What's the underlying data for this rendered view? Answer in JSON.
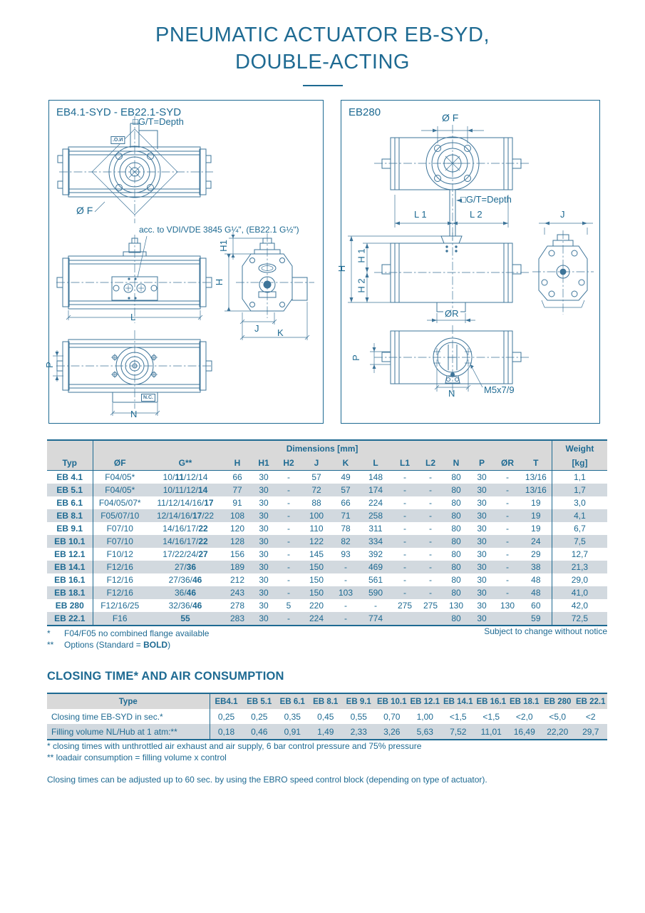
{
  "title": {
    "line1": "PNEUMATIC ACTUATOR EB-SYD,",
    "line2": "DOUBLE-ACTING"
  },
  "colors": {
    "accent": "#1e6a92",
    "header_bg": "#d9d9d9",
    "stripe_bg": "#d2d9df"
  },
  "drawings": {
    "left": {
      "box_label": "EB4.1-SYD - EB22.1-SYD",
      "labels": {
        "gt_depth": "□G/T=Depth",
        "no_tag": "N.O.",
        "of": "Ø F",
        "acc_note": "acc. to VDI/VDE 3845 G¼\", (EB22.1 G½\")",
        "dim_l": "L",
        "dim_h1": "H1",
        "dim_h": "H",
        "dim_j": "J",
        "dim_k": "K",
        "dim_p": "P",
        "dim_n": "N",
        "nc_tag": "N.C."
      }
    },
    "right": {
      "box_label": "EB280",
      "labels": {
        "of": "Ø F",
        "gt_depth": "□G/T=Depth",
        "dim_l1": "L 1",
        "dim_l2": "L 2",
        "dim_j": "J",
        "dim_h": "H",
        "dim_h1": "H 1",
        "dim_h2": "H 2",
        "dim_or": "ØR",
        "dim_p": "P",
        "dim_n": "N",
        "m5": "M5x7/9"
      }
    }
  },
  "dim_table": {
    "group_header": "Dimensions [mm]",
    "weight_header": "Weight",
    "weight_unit": "[kg]",
    "columns": [
      "Typ",
      "ØF",
      "G**",
      "H",
      "H1",
      "H2",
      "J",
      "K",
      "L",
      "L1",
      "L2",
      "N",
      "P",
      "ØR",
      "T"
    ],
    "rows": [
      {
        "typ": "EB 4.1",
        "cells": [
          "F04/05*",
          "10/**11**/12/14",
          "66",
          "30",
          "-",
          "57",
          "49",
          "148",
          "-",
          "-",
          "80",
          "30",
          "-",
          "13/16",
          "1,1"
        ]
      },
      {
        "typ": "EB 5.1",
        "cells": [
          "F04/05*",
          "10/11/12/**14**",
          "77",
          "30",
          "-",
          "72",
          "57",
          "174",
          "-",
          "-",
          "80",
          "30",
          "-",
          "13/16",
          "1,7"
        ]
      },
      {
        "typ": "EB 6.1",
        "cells": [
          "F04/05/07*",
          "11/12/14/16/**17**",
          "91",
          "30",
          "-",
          "88",
          "66",
          "224",
          "-",
          "-",
          "80",
          "30",
          "-",
          "19",
          "3,0"
        ]
      },
      {
        "typ": "EB 8.1",
        "cells": [
          "F05/07/10",
          "12/14/16/**17**/22",
          "108",
          "30",
          "-",
          "100",
          "71",
          "258",
          "-",
          "-",
          "80",
          "30",
          "-",
          "19",
          "4,1"
        ]
      },
      {
        "typ": "EB 9.1",
        "cells": [
          "F07/10",
          "14/16/17/**22**",
          "120",
          "30",
          "-",
          "110",
          "78",
          "311",
          "-",
          "-",
          "80",
          "30",
          "-",
          "19",
          "6,7"
        ]
      },
      {
        "typ": "EB 10.1",
        "cells": [
          "F07/10",
          "14/16/17/**22**",
          "128",
          "30",
          "-",
          "122",
          "82",
          "334",
          "-",
          "-",
          "80",
          "30",
          "-",
          "24",
          "7,5"
        ]
      },
      {
        "typ": "EB 12.1",
        "cells": [
          "F10/12",
          "17/22/24/**27**",
          "156",
          "30",
          "-",
          "145",
          "93",
          "392",
          "-",
          "-",
          "80",
          "30",
          "-",
          "29",
          "12,7"
        ]
      },
      {
        "typ": "EB 14.1",
        "cells": [
          "F12/16",
          "27/**36**",
          "189",
          "30",
          "-",
          "150",
          "-",
          "469",
          "-",
          "-",
          "80",
          "30",
          "-",
          "38",
          "21,3"
        ]
      },
      {
        "typ": "EB 16.1",
        "cells": [
          "F12/16",
          "27/36/**46**",
          "212",
          "30",
          "-",
          "150",
          "-",
          "561",
          "-",
          "-",
          "80",
          "30",
          "-",
          "48",
          "29,0"
        ]
      },
      {
        "typ": "EB 18.1",
        "cells": [
          "F12/16",
          "36/**46**",
          "243",
          "30",
          "-",
          "150",
          "103",
          "590",
          "-",
          "-",
          "80",
          "30",
          "-",
          "48",
          "41,0"
        ]
      },
      {
        "typ": "EB 280",
        "cells": [
          "F12/16/25",
          "32/36/**46**",
          "278",
          "30",
          "5",
          "220",
          "-",
          "-",
          "275",
          "275",
          "130",
          "30",
          "130",
          "60",
          "42,0"
        ]
      },
      {
        "typ": "EB 22.1",
        "cells": [
          "F16",
          "**55**",
          "283",
          "30",
          "-",
          "224",
          "-",
          "774",
          "",
          "",
          "80",
          "30",
          "",
          "59",
          "72,5"
        ]
      }
    ]
  },
  "dim_notes": {
    "star": "*",
    "star_text": "F04/F05 no combined flange available",
    "dstar": "**",
    "dstar_text": "Options (Standard = **BOLD**)",
    "notice": "Subject to change without notice"
  },
  "closing": {
    "heading": "CLOSING TIME* AND AIR CONSUMPTION",
    "columns": [
      "Type",
      "EB4.1",
      "EB 5.1",
      "EB 6.1",
      "EB 8.1",
      "EB 9.1",
      "EB 10.1",
      "EB 12.1",
      "EB 14.1",
      "EB 16.1",
      "EB 18.1",
      "EB 280",
      "EB 22.1"
    ],
    "rows": [
      {
        "label": "Closing time EB-SYD in sec.*",
        "values": [
          "0,25",
          "0,25",
          "0,35",
          "0,45",
          "0,55",
          "0,70",
          "1,00",
          "<1,5",
          "<1,5",
          "<2,0",
          "<5,0",
          "<2"
        ]
      },
      {
        "label": "Filling volume NL/Hub at 1 atm:**",
        "values": [
          "0,18",
          "0,46",
          "0,91",
          "1,49",
          "2,33",
          "3,26",
          "5,63",
          "7,52",
          "11,01",
          "16,49",
          "22,20",
          "29,7"
        ]
      }
    ],
    "footnote1": "*  closing times with unthrottled air exhaust and air supply, 6 bar control pressure and 75% pressure",
    "footnote2": "** loadair consumption = filling volume x control",
    "note": "Closing times can be adjusted up to 60 sec. by using the EBRO speed control block (depending on type of actuator)."
  }
}
